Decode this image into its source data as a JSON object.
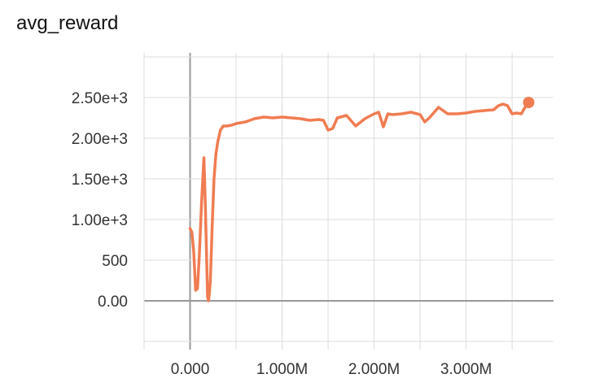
{
  "chart_data": {
    "type": "line",
    "title": "avg_reward",
    "xlabel": "",
    "ylabel": "",
    "xlim": [
      -500000,
      3950000
    ],
    "ylim": [
      -500,
      3050
    ],
    "x_ticks": [
      0,
      1000000,
      2000000,
      3000000
    ],
    "x_tick_labels": [
      "0.000",
      "1.000M",
      "2.000M",
      "3.000M"
    ],
    "y_ticks": [
      0,
      500,
      1000,
      1500,
      2000,
      2500
    ],
    "y_tick_labels": [
      "0.00",
      "500",
      "1.00e+3",
      "1.50e+3",
      "2.00e+3",
      "2.50e+3"
    ],
    "grid": true,
    "colors": {
      "line": "#f07c52",
      "grid": "#dddddd",
      "zero_axis": "#999999"
    },
    "series": [
      {
        "x": [
          0,
          20000,
          40000,
          60000,
          80000,
          100000,
          125000,
          150000,
          165000,
          180000,
          190000,
          200000,
          210000,
          220000,
          240000,
          260000,
          280000,
          300000,
          330000,
          360000,
          400000,
          450000,
          500000,
          600000,
          700000,
          800000,
          900000,
          1000000,
          1100000,
          1200000,
          1300000,
          1400000,
          1450000,
          1500000,
          1550000,
          1600000,
          1700000,
          1800000,
          1900000,
          1950000,
          2000000,
          2050000,
          2100000,
          2150000,
          2200000,
          2300000,
          2400000,
          2500000,
          2550000,
          2600000,
          2700000,
          2800000,
          2900000,
          3000000,
          3100000,
          3200000,
          3300000,
          3350000,
          3400000,
          3450000,
          3500000,
          3550000,
          3600000,
          3650000,
          3680000
        ],
        "y": [
          890,
          840,
          600,
          130,
          150,
          550,
          1200,
          1760,
          1200,
          500,
          50,
          0,
          100,
          250,
          900,
          1500,
          1800,
          1950,
          2100,
          2150,
          2150,
          2160,
          2180,
          2200,
          2240,
          2260,
          2250,
          2260,
          2250,
          2240,
          2220,
          2230,
          2220,
          2100,
          2120,
          2250,
          2280,
          2150,
          2240,
          2270,
          2300,
          2320,
          2140,
          2300,
          2290,
          2300,
          2320,
          2290,
          2200,
          2250,
          2380,
          2300,
          2300,
          2310,
          2330,
          2340,
          2350,
          2400,
          2420,
          2400,
          2300,
          2310,
          2300,
          2400,
          2440
        ]
      }
    ],
    "last_point": {
      "x": 3680000,
      "y": 2440
    }
  }
}
